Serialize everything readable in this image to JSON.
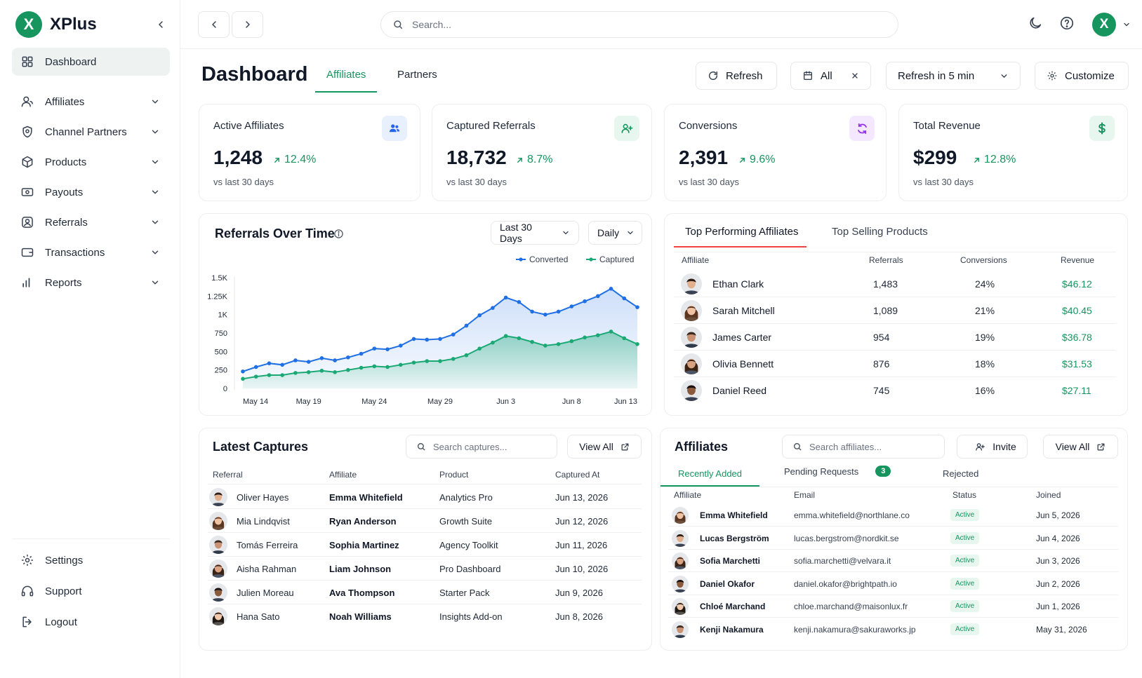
{
  "app": {
    "logo_letter": "X",
    "name": "XPlus"
  },
  "sidebar": {
    "items": [
      {
        "label": "Dashboard",
        "icon": "grid-icon",
        "active": true
      },
      {
        "label": "Affiliates",
        "icon": "user-icon"
      },
      {
        "label": "Channel Partners",
        "icon": "shield-icon"
      },
      {
        "label": "Products",
        "icon": "box-icon"
      },
      {
        "label": "Payouts",
        "icon": "banknote-icon"
      },
      {
        "label": "Referrals",
        "icon": "user-square-icon"
      },
      {
        "label": "Transactions",
        "icon": "wallet-icon"
      },
      {
        "label": "Reports",
        "icon": "bar-chart-icon"
      }
    ],
    "bottom": [
      {
        "label": "Settings",
        "icon": "gear-icon"
      },
      {
        "label": "Support",
        "icon": "headset-icon"
      },
      {
        "label": "Logout",
        "icon": "logout-icon"
      }
    ]
  },
  "topbar": {
    "search_placeholder": "Search...",
    "avatar_letter": "X"
  },
  "header": {
    "title": "Dashboard",
    "tabs": [
      "Affiliates",
      "Partners"
    ],
    "refresh_label": "Refresh",
    "filter_label": "All",
    "auto_refresh_label": "Refresh in 5 min",
    "customize_label": "Customize"
  },
  "stats": [
    {
      "label": "Active Affiliates",
      "value": "1,248",
      "change": "12.4%",
      "sub": "vs last 30 days",
      "icon": "users-icon",
      "icon_bg": "#e8f0fe",
      "icon_color": "#2563eb"
    },
    {
      "label": "Captured Referrals",
      "value": "18,732",
      "change": "8.7%",
      "sub": "vs last 30 days",
      "icon": "user-plus-icon",
      "icon_bg": "#e7f6ee",
      "icon_color": "#16955f"
    },
    {
      "label": "Conversions",
      "value": "2,391",
      "change": "9.6%",
      "sub": "vs last 30 days",
      "icon": "refresh-icon",
      "icon_bg": "#f3e8ff",
      "icon_color": "#9333ea"
    },
    {
      "label": "Total Revenue",
      "value": "$299",
      "change": "12.8%",
      "sub": "vs last 30 days",
      "icon": "dollar-icon",
      "icon_bg": "#e7f6ee",
      "icon_color": "#16955f"
    }
  ],
  "referrals_chart": {
    "title": "Referrals Over Time",
    "range_label": "Last 30 Days",
    "interval_label": "Daily",
    "colors": {
      "converted": "#1f6fe5",
      "captured": "#1aa874"
    }
  },
  "chart_data": {
    "type": "area",
    "title": "Referrals Over Time",
    "xlabel": "",
    "ylabel": "",
    "x": [
      "May 14",
      "May 15",
      "May 16",
      "May 17",
      "May 18",
      "May 19",
      "May 20",
      "May 21",
      "May 22",
      "May 23",
      "May 24",
      "May 25",
      "May 26",
      "May 27",
      "May 28",
      "May 29",
      "May 30",
      "May 31",
      "Jun 1",
      "Jun 2",
      "Jun 3",
      "Jun 4",
      "Jun 5",
      "Jun 6",
      "Jun 7",
      "Jun 8",
      "Jun 9",
      "Jun 10",
      "Jun 11",
      "Jun 12",
      "Jun 13"
    ],
    "x_tick_labels": [
      "May 14",
      "May 19",
      "May 24",
      "May 29",
      "Jun 3",
      "Jun 8",
      "Jun 13"
    ],
    "y_tick_labels": [
      "0",
      "250",
      "500",
      "750",
      "1K",
      "1.25K",
      "1.5K"
    ],
    "ylim": [
      0,
      1500
    ],
    "series": [
      {
        "name": "Converted",
        "values": [
          230,
          290,
          340,
          320,
          380,
          360,
          410,
          380,
          420,
          470,
          540,
          530,
          580,
          670,
          660,
          670,
          730,
          850,
          990,
          1090,
          1230,
          1170,
          1040,
          1000,
          1040,
          1110,
          1180,
          1250,
          1350,
          1220,
          1100
        ]
      },
      {
        "name": "Captured",
        "values": [
          130,
          160,
          180,
          180,
          210,
          220,
          240,
          220,
          250,
          280,
          300,
          290,
          320,
          350,
          370,
          370,
          400,
          450,
          540,
          620,
          710,
          680,
          630,
          580,
          600,
          640,
          690,
          720,
          770,
          680,
          600
        ]
      }
    ],
    "legend": "top-right",
    "grid": false
  },
  "top_panel": {
    "tabs": [
      "Top Performing Affiliates",
      "Top Selling Products"
    ],
    "columns": [
      "Affiliate",
      "Referrals",
      "Conversions",
      "Revenue"
    ],
    "rows": [
      {
        "name": "Ethan Clark",
        "referrals": "1,483",
        "conversions": "24%",
        "revenue": "$46.12",
        "face": "m1"
      },
      {
        "name": "Sarah Mitchell",
        "referrals": "1,089",
        "conversions": "21%",
        "revenue": "$40.45",
        "face": "f1"
      },
      {
        "name": "James Carter",
        "referrals": "954",
        "conversions": "19%",
        "revenue": "$36.78",
        "face": "m2"
      },
      {
        "name": "Olivia Bennett",
        "referrals": "876",
        "conversions": "18%",
        "revenue": "$31.53",
        "face": "f2"
      },
      {
        "name": "Daniel Reed",
        "referrals": "745",
        "conversions": "16%",
        "revenue": "$27.11",
        "face": "m3"
      }
    ]
  },
  "captures": {
    "title": "Latest Captures",
    "search_placeholder": "Search captures...",
    "view_all": "View All",
    "columns": [
      "Referral",
      "Affiliate",
      "Product",
      "Captured At"
    ],
    "rows": [
      {
        "referral": "Oliver Hayes",
        "affiliate": "Emma Whitefield",
        "product": "Analytics Pro",
        "date": "Jun 13, 2026",
        "face": "m1"
      },
      {
        "referral": "Mia Lindqvist",
        "affiliate": "Ryan Anderson",
        "product": "Growth Suite",
        "date": "Jun 12, 2026",
        "face": "f1"
      },
      {
        "referral": "Tomás Ferreira",
        "affiliate": "Sophia Martinez",
        "product": "Agency Toolkit",
        "date": "Jun 11, 2026",
        "face": "m2"
      },
      {
        "referral": "Aisha Rahman",
        "affiliate": "Liam Johnson",
        "product": "Pro Dashboard",
        "date": "Jun 10, 2026",
        "face": "f2"
      },
      {
        "referral": "Julien Moreau",
        "affiliate": "Ava Thompson",
        "product": "Starter Pack",
        "date": "Jun 9, 2026",
        "face": "m3"
      },
      {
        "referral": "Hana Sato",
        "affiliate": "Noah Williams",
        "product": "Insights Add-on",
        "date": "Jun 8, 2026",
        "face": "f3"
      }
    ]
  },
  "affiliates_panel": {
    "title": "Affiliates",
    "search_placeholder": "Search affiliates...",
    "invite_label": "Invite",
    "view_all": "View All",
    "tabs": [
      "Recently Added",
      "Pending Requests",
      "Rejected"
    ],
    "pending_count": "3",
    "columns": [
      "Affiliate",
      "Email",
      "Status",
      "Joined"
    ],
    "rows": [
      {
        "name": "Emma Whitefield",
        "email": "emma.whitefield@northlane.co",
        "status": "Active",
        "joined": "Jun 5, 2026",
        "face": "f1"
      },
      {
        "name": "Lucas Bergström",
        "email": "lucas.bergstrom@nordkit.se",
        "status": "Active",
        "joined": "Jun 4, 2026",
        "face": "m1"
      },
      {
        "name": "Sofia Marchetti",
        "email": "sofia.marchetti@velvara.it",
        "status": "Active",
        "joined": "Jun 3, 2026",
        "face": "f2"
      },
      {
        "name": "Daniel Okafor",
        "email": "daniel.okafor@brightpath.io",
        "status": "Active",
        "joined": "Jun 2, 2026",
        "face": "m3"
      },
      {
        "name": "Chloé Marchand",
        "email": "chloe.marchand@maisonlux.fr",
        "status": "Active",
        "joined": "Jun 1, 2026",
        "face": "f3"
      },
      {
        "name": "Kenji Nakamura",
        "email": "kenji.nakamura@sakuraworks.jp",
        "status": "Active",
        "joined": "May 31, 2026",
        "face": "m2"
      }
    ]
  }
}
